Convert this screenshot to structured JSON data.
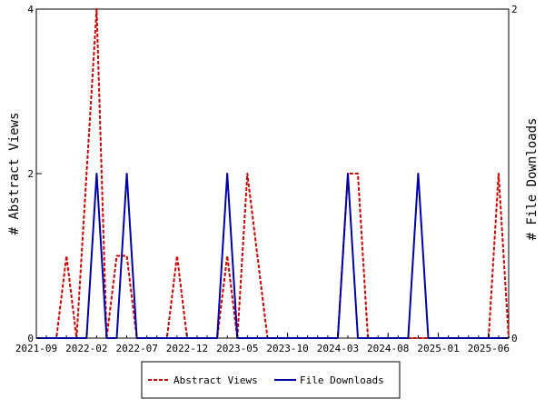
{
  "chart_data": {
    "type": "line",
    "x_tick_labels": [
      "2021-09",
      "2022-02",
      "2022-07",
      "2022-12",
      "2023-05",
      "2023-10",
      "2024-03",
      "2024-08",
      "2025-01",
      "2025-06"
    ],
    "x_range": [
      "2021-09",
      "2025-08"
    ],
    "left_axis": {
      "label": "# Abstract Views",
      "ylim": [
        0,
        4
      ],
      "tick_labels": [
        "0",
        "2",
        "4"
      ]
    },
    "right_axis": {
      "label": "# File Downloads",
      "ylim": [
        0,
        2
      ],
      "tick_labels": [
        "0",
        "2"
      ]
    },
    "series": [
      {
        "name": "Abstract Views",
        "axis": "left",
        "color": "#cc0000",
        "dash": "dashed",
        "points": [
          [
            "2021-09",
            0
          ],
          [
            "2021-10",
            0
          ],
          [
            "2021-11",
            0
          ],
          [
            "2021-12",
            1
          ],
          [
            "2022-01",
            0
          ],
          [
            "2022-02",
            2
          ],
          [
            "2022-03",
            4
          ],
          [
            "2022-04",
            0
          ],
          [
            "2022-05",
            1
          ],
          [
            "2022-06",
            1
          ],
          [
            "2022-07",
            0
          ],
          [
            "2022-08",
            0
          ],
          [
            "2022-09",
            0
          ],
          [
            "2022-10",
            0
          ],
          [
            "2022-11",
            1
          ],
          [
            "2022-12",
            0
          ],
          [
            "2023-01",
            0
          ],
          [
            "2023-02",
            0
          ],
          [
            "2023-03",
            0
          ],
          [
            "2023-04",
            1
          ],
          [
            "2023-05",
            0
          ],
          [
            "2023-06",
            2
          ],
          [
            "2023-07",
            1
          ],
          [
            "2023-08",
            0
          ],
          [
            "2023-09",
            0
          ],
          [
            "2023-10",
            0
          ],
          [
            "2023-11",
            0
          ],
          [
            "2023-12",
            0
          ],
          [
            "2024-01",
            0
          ],
          [
            "2024-02",
            0
          ],
          [
            "2024-03",
            0
          ],
          [
            "2024-04",
            2
          ],
          [
            "2024-05",
            2
          ],
          [
            "2024-06",
            0
          ],
          [
            "2024-07",
            0
          ],
          [
            "2024-08",
            0
          ],
          [
            "2024-09",
            0
          ],
          [
            "2024-10",
            0
          ],
          [
            "2024-11",
            0
          ],
          [
            "2024-12",
            0
          ],
          [
            "2025-01",
            0
          ],
          [
            "2025-02",
            0
          ],
          [
            "2025-03",
            0
          ],
          [
            "2025-04",
            0
          ],
          [
            "2025-05",
            0
          ],
          [
            "2025-06",
            0
          ],
          [
            "2025-07",
            2
          ],
          [
            "2025-08",
            0
          ]
        ]
      },
      {
        "name": "File Downloads",
        "axis": "right",
        "color": "#0000aa",
        "dash": "solid",
        "points": [
          [
            "2021-09",
            0
          ],
          [
            "2021-10",
            0
          ],
          [
            "2021-11",
            0
          ],
          [
            "2021-12",
            0
          ],
          [
            "2022-01",
            0
          ],
          [
            "2022-02",
            0
          ],
          [
            "2022-03",
            1
          ],
          [
            "2022-04",
            0
          ],
          [
            "2022-05",
            0
          ],
          [
            "2022-06",
            1
          ],
          [
            "2022-07",
            0
          ],
          [
            "2022-08",
            0
          ],
          [
            "2022-09",
            0
          ],
          [
            "2022-10",
            0
          ],
          [
            "2022-11",
            0
          ],
          [
            "2022-12",
            0
          ],
          [
            "2023-01",
            0
          ],
          [
            "2023-02",
            0
          ],
          [
            "2023-03",
            0
          ],
          [
            "2023-04",
            1
          ],
          [
            "2023-05",
            0
          ],
          [
            "2023-06",
            0
          ],
          [
            "2023-07",
            0
          ],
          [
            "2023-08",
            0
          ],
          [
            "2023-09",
            0
          ],
          [
            "2023-10",
            0
          ],
          [
            "2023-11",
            0
          ],
          [
            "2023-12",
            0
          ],
          [
            "2024-01",
            0
          ],
          [
            "2024-02",
            0
          ],
          [
            "2024-03",
            0
          ],
          [
            "2024-04",
            1
          ],
          [
            "2024-05",
            0
          ],
          [
            "2024-06",
            0
          ],
          [
            "2024-07",
            0
          ],
          [
            "2024-08",
            0
          ],
          [
            "2024-09",
            0
          ],
          [
            "2024-10",
            0
          ],
          [
            "2024-11",
            1
          ],
          [
            "2024-12",
            0
          ],
          [
            "2025-01",
            0
          ],
          [
            "2025-02",
            0
          ],
          [
            "2025-03",
            0
          ],
          [
            "2025-04",
            0
          ],
          [
            "2025-05",
            0
          ],
          [
            "2025-06",
            0
          ],
          [
            "2025-07",
            0
          ],
          [
            "2025-08",
            0
          ]
        ]
      }
    ],
    "grid": false,
    "legend_position": "bottom-center"
  }
}
